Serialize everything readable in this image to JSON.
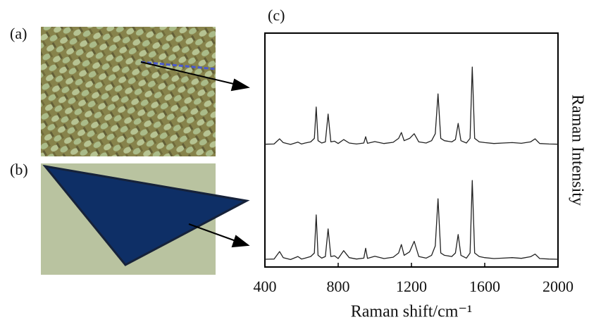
{
  "panel_labels": [
    "(a)",
    "(b)",
    "(c)"
  ],
  "chart_data": {
    "type": "line",
    "x_label": "Raman shift/cm⁻¹",
    "y_label": "Raman Intensity",
    "x": [
      400,
      450,
      480,
      500,
      540,
      580,
      600,
      620,
      650,
      670,
      680,
      690,
      710,
      730,
      745,
      760,
      780,
      800,
      830,
      860,
      900,
      940,
      950,
      960,
      1000,
      1050,
      1100,
      1130,
      1145,
      1160,
      1190,
      1215,
      1240,
      1280,
      1310,
      1330,
      1345,
      1360,
      1380,
      1420,
      1440,
      1455,
      1470,
      1500,
      1520,
      1532,
      1545,
      1570,
      1600,
      1650,
      1700,
      1750,
      1800,
      1850,
      1875,
      1900,
      1950,
      2000
    ],
    "series": [
      {
        "color": "#222",
        "values": [
          52.5,
          52.6,
          54.8,
          53.2,
          52.4,
          53.4,
          52.6,
          53.0,
          53.5,
          55,
          68.4,
          54,
          53,
          53.5,
          65.4,
          53.5,
          53.8,
          52.8,
          54.5,
          53,
          52.6,
          53,
          55.7,
          52.9,
          53.6,
          52.8,
          53.3,
          55,
          57.5,
          54,
          55,
          57,
          53.5,
          53,
          54,
          57,
          74,
          55,
          54,
          53.5,
          54.5,
          61.4,
          54,
          53,
          55,
          85.5,
          55,
          53.5,
          53.2,
          52.8,
          53,
          53.2,
          52.9,
          53.5,
          54.8,
          52.8,
          52.6,
          52.5
        ]
      },
      {
        "color": "#222",
        "values": [
          3.3,
          3.4,
          6.6,
          4,
          3.2,
          4.5,
          3.4,
          3.8,
          4.5,
          6,
          22.3,
          5,
          3.8,
          4.5,
          16.3,
          4.5,
          4.8,
          3.6,
          7,
          4,
          3.4,
          3.8,
          8,
          3.7,
          4.6,
          3.6,
          4.2,
          6,
          9.6,
          5,
          6.5,
          11,
          4.5,
          3.8,
          5,
          9,
          29.2,
          6,
          5,
          4.5,
          6,
          13.9,
          5,
          3.8,
          6,
          37,
          6,
          4.5,
          4,
          3.6,
          3.8,
          4,
          3.7,
          4.4,
          5.5,
          3.6,
          3.4,
          3.3
        ]
      }
    ],
    "xlim": [
      400,
      2000
    ],
    "xticks": [
      400,
      800,
      1200,
      1600,
      2000
    ],
    "ylim": [
      0,
      100
    ]
  }
}
